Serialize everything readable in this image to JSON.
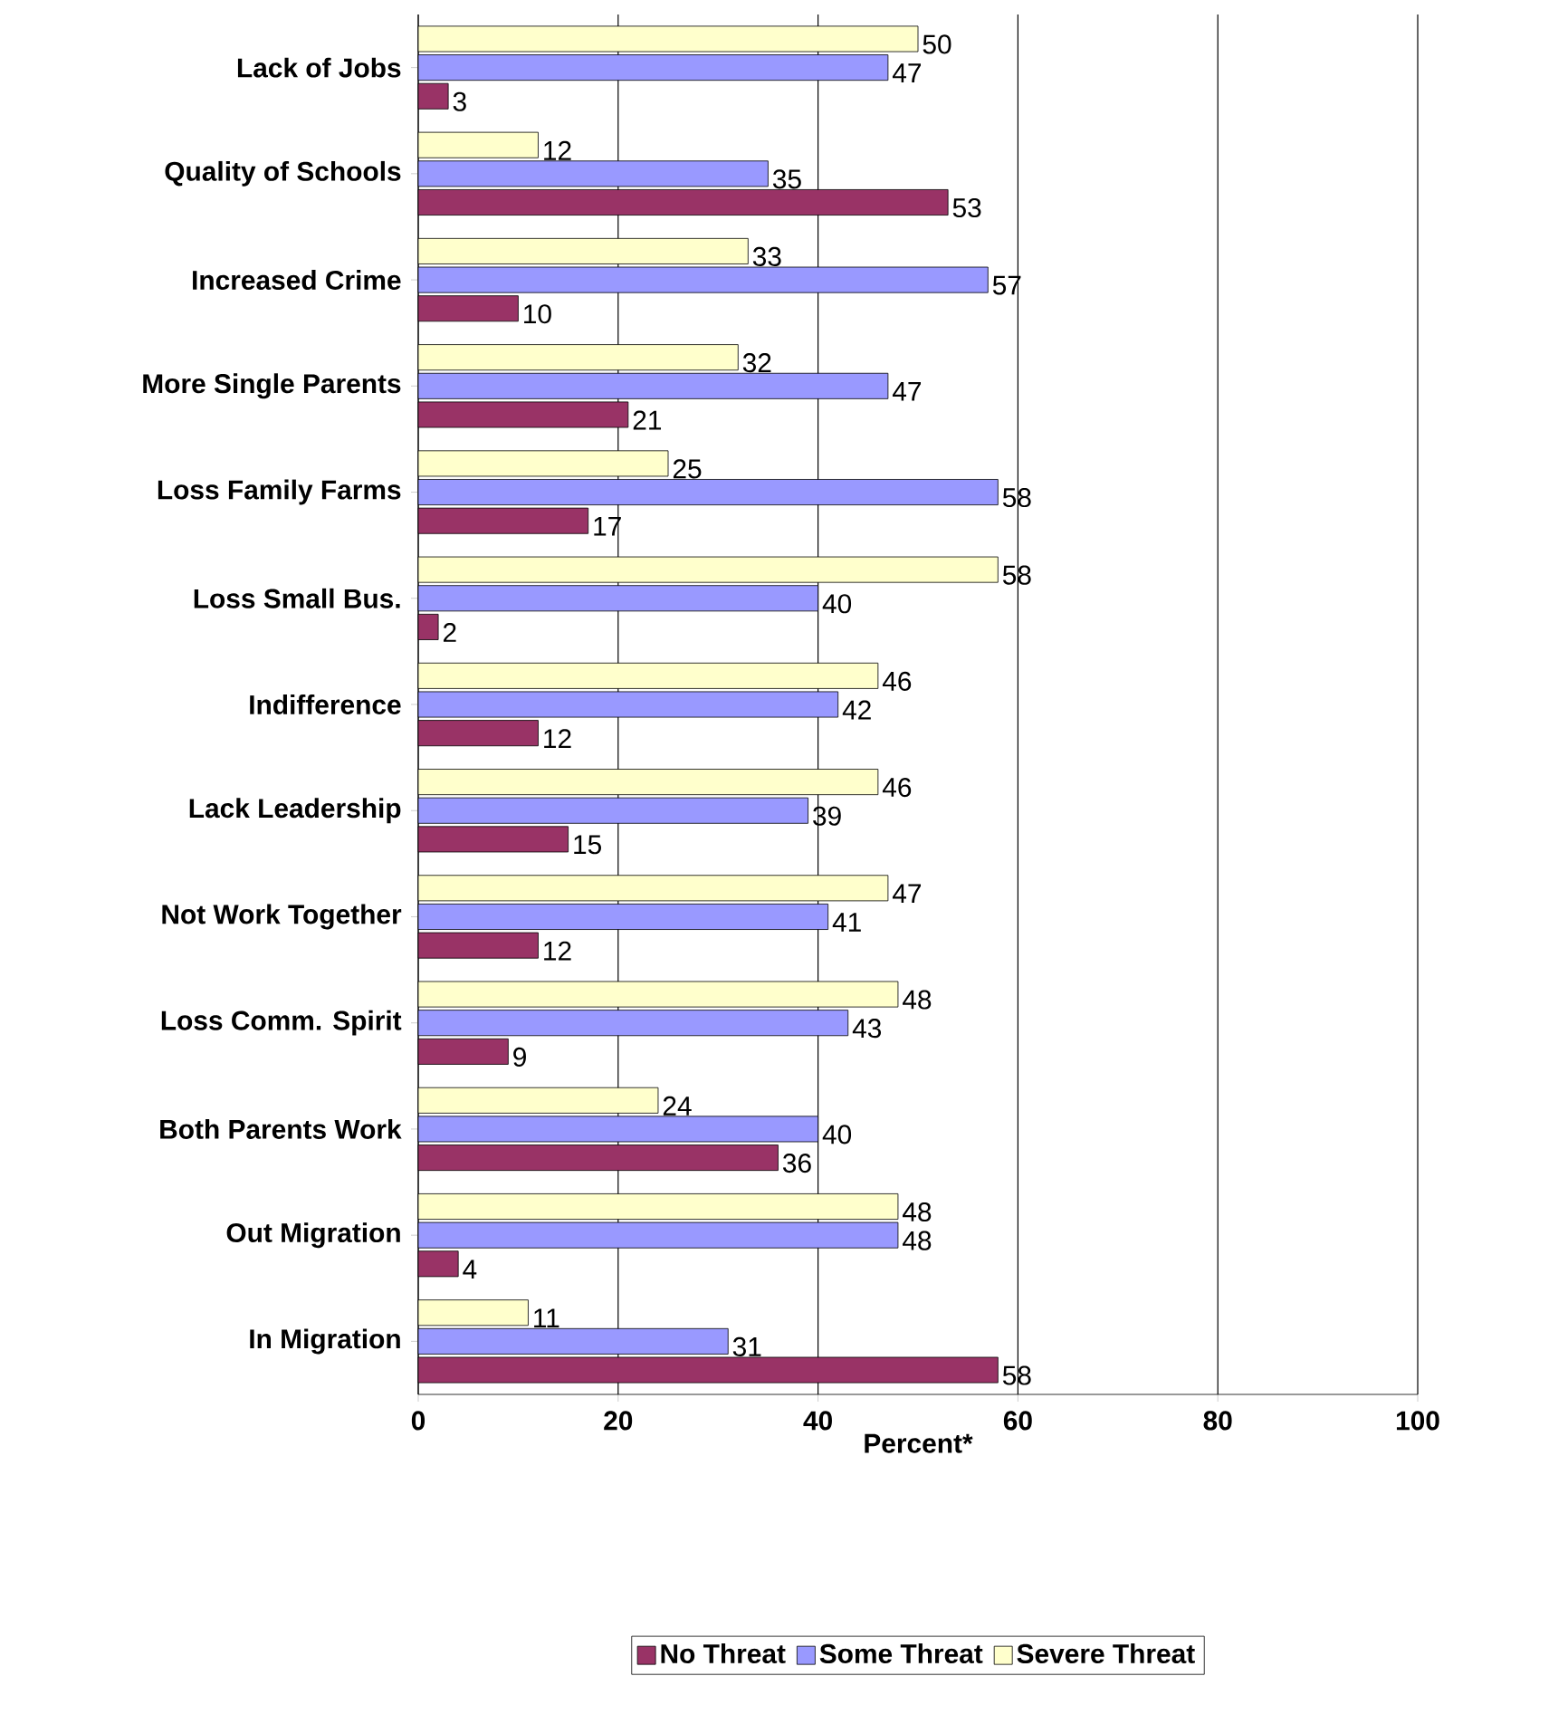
{
  "chart_data": {
    "type": "bar",
    "orientation": "horizontal",
    "xlabel": "Percent*",
    "categories": [
      "Lack of Jobs",
      "Quality of Schools",
      "Increased Crime",
      "More Single Parents",
      "Loss Family Farms",
      "Loss Small Bus.",
      "Indifference",
      "Lack Leadership",
      "Not Work Together",
      "Loss Comm. Spirit",
      "Both Parents Work",
      "Out Migration",
      "In Migration"
    ],
    "series": [
      {
        "name": "No Threat",
        "color": "#993366",
        "values": [
          3,
          53,
          10,
          21,
          17,
          2,
          12,
          15,
          12,
          9,
          36,
          4,
          58
        ]
      },
      {
        "name": "Some Threat",
        "color": "#9999ff",
        "values": [
          47,
          35,
          57,
          47,
          58,
          40,
          42,
          39,
          41,
          43,
          40,
          48,
          31
        ]
      },
      {
        "name": "Severe Threat",
        "color": "#ffffcc",
        "values": [
          50,
          12,
          33,
          32,
          25,
          58,
          46,
          46,
          47,
          48,
          24,
          48,
          11
        ]
      }
    ],
    "xlim": [
      0,
      100
    ],
    "xticks": [
      0,
      20,
      40,
      60,
      80,
      100
    ],
    "grid": "x",
    "legend": "bottom",
    "data_labels": true
  }
}
